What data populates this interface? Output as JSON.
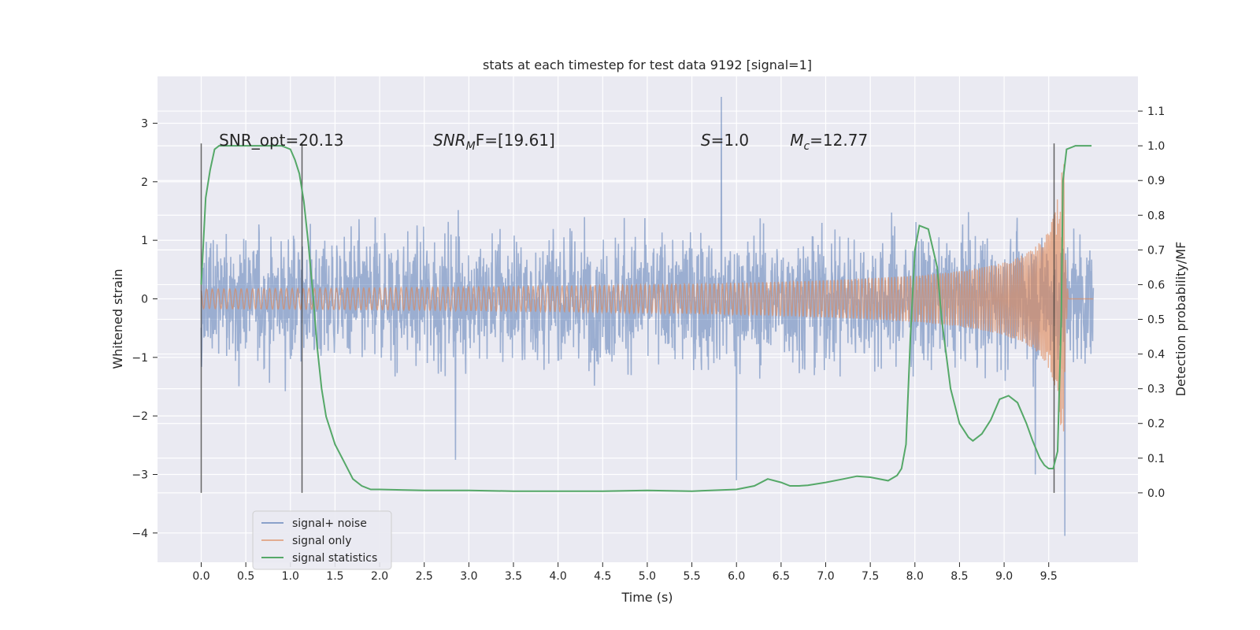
{
  "chart_data": {
    "type": "line",
    "title": "stats at each timestep for test data 9192 [signal=1]",
    "xlabel": "Time (s)",
    "ylabel": "Whitened strain",
    "y2label": "Detection probability/MF",
    "xlim": [
      -0.49,
      10.5
    ],
    "ylim": [
      -4.5,
      3.8
    ],
    "y2lim": [
      -0.2,
      1.2
    ],
    "x_ticks": [
      0.0,
      0.5,
      1.0,
      1.5,
      2.0,
      2.5,
      3.0,
      3.5,
      4.0,
      4.5,
      5.0,
      5.5,
      6.0,
      6.5,
      7.0,
      7.5,
      8.0,
      8.5,
      9.0,
      9.5
    ],
    "x_tick_labels": [
      "0.0",
      "0.5",
      "1.0",
      "1.5",
      "2.0",
      "2.5",
      "3.0",
      "3.5",
      "4.0",
      "4.5",
      "5.0",
      "5.5",
      "6.0",
      "6.5",
      "7.0",
      "7.5",
      "8.0",
      "8.5",
      "9.0",
      "9.5"
    ],
    "y_ticks": [
      -4,
      -3,
      -2,
      -1,
      0,
      1,
      2,
      3
    ],
    "y_tick_labels": [
      "−4",
      "−3",
      "−2",
      "−1",
      "0",
      "1",
      "2",
      "3"
    ],
    "y2_ticks": [
      0.0,
      0.1,
      0.2,
      0.3,
      0.4,
      0.5,
      0.6,
      0.7,
      0.8,
      0.9,
      1.0,
      1.1
    ],
    "y2_tick_labels": [
      "0.0",
      "0.1",
      "0.2",
      "0.3",
      "0.4",
      "0.5",
      "0.6",
      "0.7",
      "0.8",
      "0.9",
      "1.0",
      "1.1"
    ],
    "grid": true,
    "legend_position": "lower-left",
    "annotations": [
      {
        "prefix": "SNR_opt",
        "sub": "",
        "suffix": "=20.13",
        "italic": false,
        "x": 0.2
      },
      {
        "prefix": "SNR",
        "sub": "M",
        "suffix": "F=[19.61]",
        "italic": true,
        "x": 2.6
      },
      {
        "prefix": "S",
        "sub": "",
        "suffix": "=1.0",
        "italic": true,
        "x": 5.6
      },
      {
        "prefix": "M",
        "sub": "c",
        "suffix": "=12.77",
        "italic": true,
        "x": 6.6
      }
    ],
    "vertical_lines": [
      0.0,
      1.13,
      9.56
    ],
    "series": [
      {
        "name": "signal+ noise",
        "color": "#4c72b0",
        "kind": "noise",
        "x_range": [
          0.0,
          10.0
        ],
        "typical_amplitude": 1.4,
        "extremes": [
          {
            "x": 5.83,
            "y": 3.45
          },
          {
            "x": 9.68,
            "y": -4.05
          },
          {
            "x": 6.0,
            "y": -3.1
          },
          {
            "x": 2.85,
            "y": -2.75
          },
          {
            "x": 9.35,
            "y": -3.0
          }
        ]
      },
      {
        "name": "signal only",
        "color": "#dd8452",
        "kind": "chirp",
        "x_range": [
          0.0,
          10.0
        ],
        "merger_x": 9.67,
        "peak_amplitude": 2.3
      },
      {
        "name": "signal statistics",
        "color": "#55a868",
        "kind": "line",
        "axis": "right",
        "x": [
          0.0,
          0.05,
          0.1,
          0.15,
          0.2,
          0.3,
          0.5,
          0.7,
          0.9,
          1.0,
          1.05,
          1.1,
          1.15,
          1.2,
          1.25,
          1.3,
          1.35,
          1.4,
          1.5,
          1.6,
          1.7,
          1.8,
          1.9,
          2.0,
          2.5,
          3.0,
          3.5,
          4.0,
          4.5,
          5.0,
          5.5,
          6.0,
          6.2,
          6.35,
          6.5,
          6.6,
          6.7,
          6.8,
          7.0,
          7.2,
          7.35,
          7.5,
          7.7,
          7.8,
          7.85,
          7.9,
          7.95,
          8.0,
          8.05,
          8.15,
          8.25,
          8.3,
          8.4,
          8.5,
          8.6,
          8.65,
          8.75,
          8.85,
          8.95,
          9.05,
          9.15,
          9.25,
          9.32,
          9.4,
          9.45,
          9.5,
          9.55,
          9.6,
          9.64,
          9.66,
          9.7,
          9.8,
          9.9,
          9.98
        ],
        "y": [
          0.6,
          0.85,
          0.93,
          0.99,
          1.0,
          1.0,
          1.0,
          1.0,
          1.0,
          0.99,
          0.96,
          0.92,
          0.84,
          0.72,
          0.58,
          0.42,
          0.3,
          0.22,
          0.14,
          0.09,
          0.04,
          0.02,
          0.01,
          0.01,
          0.007,
          0.007,
          0.005,
          0.005,
          0.005,
          0.007,
          0.005,
          0.01,
          0.02,
          0.04,
          0.03,
          0.02,
          0.02,
          0.022,
          0.03,
          0.04,
          0.048,
          0.045,
          0.035,
          0.05,
          0.07,
          0.14,
          0.45,
          0.7,
          0.77,
          0.76,
          0.65,
          0.5,
          0.3,
          0.2,
          0.16,
          0.15,
          0.17,
          0.21,
          0.27,
          0.28,
          0.26,
          0.2,
          0.15,
          0.1,
          0.08,
          0.07,
          0.07,
          0.12,
          0.5,
          0.9,
          0.99,
          1.0,
          1.0,
          1.0
        ]
      }
    ]
  }
}
